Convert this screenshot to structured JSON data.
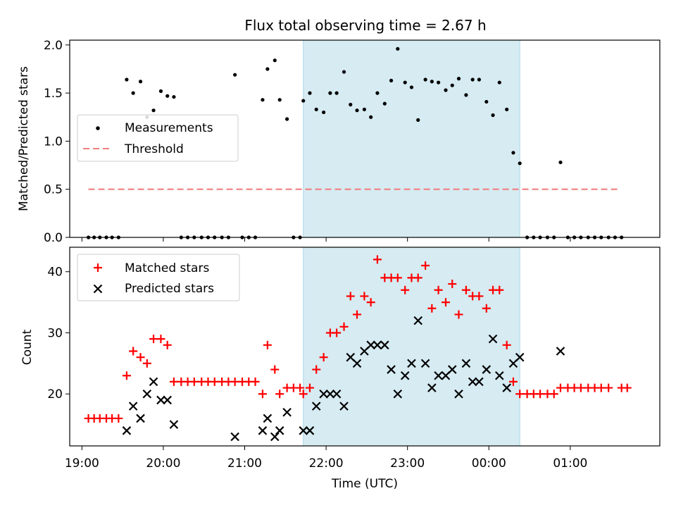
{
  "title": "Flux total observing time = 2.67 h",
  "colors": {
    "measurement": "#000000",
    "threshold": "#f08080",
    "matched": "#ff0000",
    "predicted": "#000000",
    "shade": "#add8e6"
  },
  "chart_data": [
    {
      "type": "scatter",
      "panel": "top",
      "ylabel": "Matched/Predicted stars",
      "ylim": [
        0,
        2.05
      ],
      "yticks": [
        "0.0",
        "0.5",
        "1.0",
        "1.5",
        "2.0"
      ],
      "ytick_values": [
        0,
        0.5,
        1.0,
        1.5,
        2.0
      ],
      "xlim": [
        18.85,
        26.1
      ],
      "shaded_region": [
        21.72,
        24.38
      ],
      "legend": {
        "position": "center-left",
        "entries": [
          {
            "key": "measurements",
            "label": "Measurements",
            "marker": "dot"
          },
          {
            "key": "threshold",
            "label": "Threshold",
            "marker": "dashed-line"
          }
        ]
      },
      "threshold": {
        "value": 0.5,
        "x_range": [
          19.08,
          25.62
        ]
      },
      "series": [
        {
          "key": "measurements",
          "name": "Measurements",
          "points": [
            [
              19.08,
              0
            ],
            [
              19.15,
              0
            ],
            [
              19.22,
              0
            ],
            [
              19.3,
              0
            ],
            [
              19.37,
              0
            ],
            [
              19.45,
              0
            ],
            [
              19.55,
              1.64
            ],
            [
              19.63,
              1.5
            ],
            [
              19.72,
              1.62
            ],
            [
              19.8,
              1.25
            ],
            [
              19.88,
              1.32
            ],
            [
              19.97,
              1.52
            ],
            [
              20.05,
              1.47
            ],
            [
              20.13,
              1.46
            ],
            [
              20.22,
              0
            ],
            [
              20.3,
              0
            ],
            [
              20.38,
              0
            ],
            [
              20.47,
              0
            ],
            [
              20.55,
              0
            ],
            [
              20.63,
              0
            ],
            [
              20.72,
              0
            ],
            [
              20.8,
              0
            ],
            [
              20.88,
              1.69
            ],
            [
              20.97,
              0
            ],
            [
              21.05,
              0
            ],
            [
              21.13,
              0
            ],
            [
              21.22,
              1.43
            ],
            [
              21.28,
              1.75
            ],
            [
              21.37,
              1.84
            ],
            [
              21.43,
              1.43
            ],
            [
              21.52,
              1.23
            ],
            [
              21.6,
              0
            ],
            [
              21.68,
              0
            ],
            [
              21.72,
              1.42
            ],
            [
              21.8,
              1.5
            ],
            [
              21.88,
              1.33
            ],
            [
              21.97,
              1.3
            ],
            [
              22.05,
              1.5
            ],
            [
              22.13,
              1.5
            ],
            [
              22.22,
              1.72
            ],
            [
              22.3,
              1.38
            ],
            [
              22.38,
              1.32
            ],
            [
              22.47,
              1.33
            ],
            [
              22.55,
              1.25
            ],
            [
              22.63,
              1.5
            ],
            [
              22.72,
              1.39
            ],
            [
              22.8,
              1.63
            ],
            [
              22.88,
              1.96
            ],
            [
              22.97,
              1.61
            ],
            [
              23.05,
              1.56
            ],
            [
              23.13,
              1.22
            ],
            [
              23.22,
              1.64
            ],
            [
              23.3,
              1.62
            ],
            [
              23.38,
              1.61
            ],
            [
              23.47,
              1.53
            ],
            [
              23.55,
              1.58
            ],
            [
              23.63,
              1.65
            ],
            [
              23.72,
              1.48
            ],
            [
              23.8,
              1.64
            ],
            [
              23.88,
              1.64
            ],
            [
              23.97,
              1.41
            ],
            [
              24.05,
              1.27
            ],
            [
              24.13,
              1.61
            ],
            [
              24.22,
              1.33
            ],
            [
              24.3,
              0.88
            ],
            [
              24.38,
              0.77
            ],
            [
              24.47,
              0
            ],
            [
              24.55,
              0
            ],
            [
              24.63,
              0
            ],
            [
              24.72,
              0
            ],
            [
              24.8,
              0
            ],
            [
              24.88,
              0.78
            ],
            [
              24.97,
              0
            ],
            [
              25.05,
              0
            ],
            [
              25.13,
              0
            ],
            [
              25.22,
              0
            ],
            [
              25.3,
              0
            ],
            [
              25.38,
              0
            ],
            [
              25.47,
              0
            ],
            [
              25.55,
              0
            ],
            [
              25.63,
              0
            ]
          ]
        }
      ]
    },
    {
      "type": "scatter",
      "panel": "bottom",
      "xlabel": "Time (UTC)",
      "ylabel": "Count",
      "ylim": [
        11.5,
        44
      ],
      "yticks": [
        "20",
        "30",
        "40"
      ],
      "ytick_values": [
        20,
        30,
        40
      ],
      "xlim": [
        18.85,
        26.1
      ],
      "xticks": [
        "19:00",
        "20:00",
        "21:00",
        "22:00",
        "23:00",
        "00:00",
        "01:00"
      ],
      "xtick_values": [
        19,
        20,
        21,
        22,
        23,
        24,
        25
      ],
      "shaded_region": [
        21.72,
        24.38
      ],
      "legend": {
        "position": "top-left",
        "entries": [
          {
            "key": "matched",
            "label": "Matched stars",
            "marker": "plus"
          },
          {
            "key": "predicted",
            "label": "Predicted stars",
            "marker": "x"
          }
        ]
      },
      "series": [
        {
          "key": "matched",
          "name": "Matched stars",
          "points": [
            [
              19.08,
              16
            ],
            [
              19.15,
              16
            ],
            [
              19.22,
              16
            ],
            [
              19.3,
              16
            ],
            [
              19.37,
              16
            ],
            [
              19.45,
              16
            ],
            [
              19.55,
              23
            ],
            [
              19.63,
              27
            ],
            [
              19.72,
              26
            ],
            [
              19.8,
              25
            ],
            [
              19.88,
              29
            ],
            [
              19.97,
              29
            ],
            [
              20.05,
              28
            ],
            [
              20.13,
              22
            ],
            [
              20.22,
              22
            ],
            [
              20.3,
              22
            ],
            [
              20.38,
              22
            ],
            [
              20.47,
              22
            ],
            [
              20.55,
              22
            ],
            [
              20.63,
              22
            ],
            [
              20.72,
              22
            ],
            [
              20.8,
              22
            ],
            [
              20.88,
              22
            ],
            [
              20.97,
              22
            ],
            [
              21.05,
              22
            ],
            [
              21.13,
              22
            ],
            [
              21.22,
              20
            ],
            [
              21.28,
              28
            ],
            [
              21.37,
              24
            ],
            [
              21.43,
              20
            ],
            [
              21.52,
              21
            ],
            [
              21.6,
              21
            ],
            [
              21.68,
              21
            ],
            [
              21.72,
              20
            ],
            [
              21.8,
              21
            ],
            [
              21.88,
              24
            ],
            [
              21.97,
              26
            ],
            [
              22.05,
              30
            ],
            [
              22.13,
              30
            ],
            [
              22.22,
              31
            ],
            [
              22.3,
              36
            ],
            [
              22.38,
              33
            ],
            [
              22.47,
              36
            ],
            [
              22.55,
              35
            ],
            [
              22.63,
              42
            ],
            [
              22.72,
              39
            ],
            [
              22.8,
              39
            ],
            [
              22.88,
              39
            ],
            [
              22.97,
              37
            ],
            [
              23.05,
              39
            ],
            [
              23.13,
              39
            ],
            [
              23.22,
              41
            ],
            [
              23.3,
              34
            ],
            [
              23.38,
              37
            ],
            [
              23.47,
              35
            ],
            [
              23.55,
              38
            ],
            [
              23.63,
              33
            ],
            [
              23.72,
              37
            ],
            [
              23.8,
              36
            ],
            [
              23.88,
              36
            ],
            [
              23.97,
              34
            ],
            [
              24.05,
              37
            ],
            [
              24.13,
              37
            ],
            [
              24.22,
              28
            ],
            [
              24.3,
              22
            ],
            [
              24.38,
              20
            ],
            [
              24.47,
              20
            ],
            [
              24.55,
              20
            ],
            [
              24.63,
              20
            ],
            [
              24.72,
              20
            ],
            [
              24.8,
              20
            ],
            [
              24.88,
              21
            ],
            [
              24.97,
              21
            ],
            [
              25.05,
              21
            ],
            [
              25.13,
              21
            ],
            [
              25.22,
              21
            ],
            [
              25.3,
              21
            ],
            [
              25.38,
              21
            ],
            [
              25.47,
              21
            ],
            [
              25.63,
              21
            ],
            [
              25.7,
              21
            ]
          ]
        },
        {
          "key": "predicted",
          "name": "Predicted stars",
          "points": [
            [
              19.55,
              14
            ],
            [
              19.63,
              18
            ],
            [
              19.72,
              16
            ],
            [
              19.8,
              20
            ],
            [
              19.88,
              22
            ],
            [
              19.97,
              19
            ],
            [
              20.05,
              19
            ],
            [
              20.13,
              15
            ],
            [
              20.88,
              13
            ],
            [
              21.22,
              14
            ],
            [
              21.28,
              16
            ],
            [
              21.37,
              13
            ],
            [
              21.43,
              14
            ],
            [
              21.52,
              17
            ],
            [
              21.72,
              14
            ],
            [
              21.8,
              14
            ],
            [
              21.88,
              18
            ],
            [
              21.97,
              20
            ],
            [
              22.05,
              20
            ],
            [
              22.13,
              20
            ],
            [
              22.22,
              18
            ],
            [
              22.3,
              26
            ],
            [
              22.38,
              25
            ],
            [
              22.47,
              27
            ],
            [
              22.55,
              28
            ],
            [
              22.63,
              28
            ],
            [
              22.72,
              28
            ],
            [
              22.8,
              24
            ],
            [
              22.88,
              20
            ],
            [
              22.97,
              23
            ],
            [
              23.05,
              25
            ],
            [
              23.13,
              32
            ],
            [
              23.22,
              25
            ],
            [
              23.3,
              21
            ],
            [
              23.38,
              23
            ],
            [
              23.47,
              23
            ],
            [
              23.55,
              24
            ],
            [
              23.63,
              20
            ],
            [
              23.72,
              25
            ],
            [
              23.8,
              22
            ],
            [
              23.88,
              22
            ],
            [
              23.97,
              24
            ],
            [
              24.05,
              29
            ],
            [
              24.13,
              23
            ],
            [
              24.22,
              21
            ],
            [
              24.3,
              25
            ],
            [
              24.38,
              26
            ],
            [
              24.88,
              27
            ]
          ]
        }
      ]
    }
  ]
}
